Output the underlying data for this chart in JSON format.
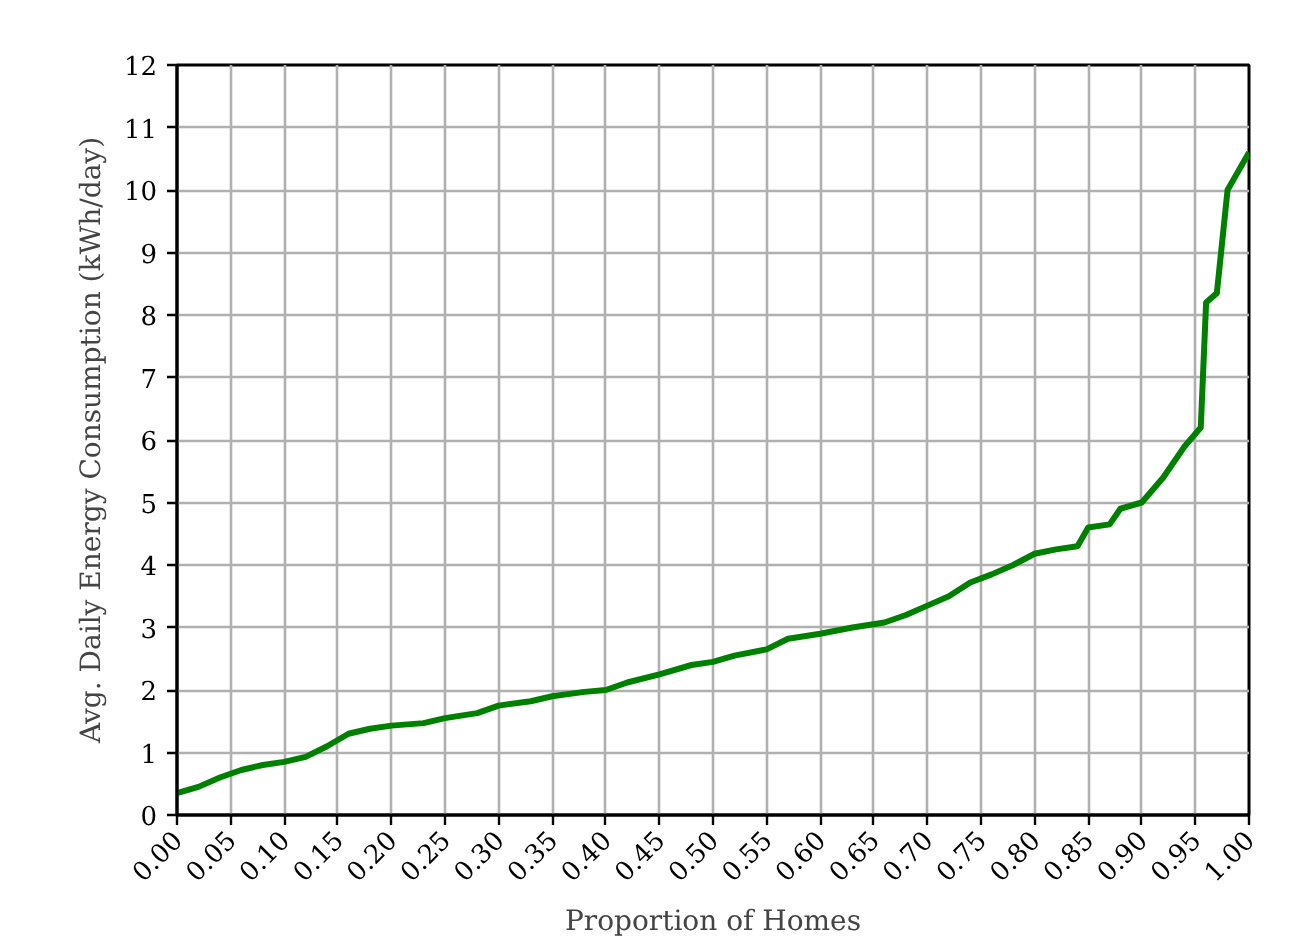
{
  "chart_data": {
    "type": "line",
    "xlabel": "Proportion of Homes",
    "ylabel": "Avg. Daily Energy Consumption (kWh/day)",
    "x": [
      0.0,
      0.02,
      0.04,
      0.06,
      0.08,
      0.1,
      0.12,
      0.14,
      0.16,
      0.18,
      0.2,
      0.23,
      0.25,
      0.28,
      0.3,
      0.33,
      0.35,
      0.38,
      0.4,
      0.42,
      0.45,
      0.48,
      0.5,
      0.52,
      0.55,
      0.57,
      0.6,
      0.63,
      0.66,
      0.68,
      0.7,
      0.72,
      0.74,
      0.76,
      0.78,
      0.8,
      0.82,
      0.84,
      0.85,
      0.87,
      0.88,
      0.9,
      0.92,
      0.94,
      0.955,
      0.96,
      0.97,
      0.98,
      1.0
    ],
    "series": [
      {
        "color": "#008000",
        "values": [
          0.35,
          0.45,
          0.6,
          0.72,
          0.8,
          0.85,
          0.93,
          1.1,
          1.3,
          1.38,
          1.43,
          1.47,
          1.55,
          1.63,
          1.75,
          1.82,
          1.9,
          1.97,
          2.0,
          2.12,
          2.25,
          2.4,
          2.45,
          2.55,
          2.65,
          2.82,
          2.9,
          3.0,
          3.08,
          3.2,
          3.35,
          3.5,
          3.72,
          3.85,
          4.0,
          4.18,
          4.25,
          4.3,
          4.6,
          4.65,
          4.9,
          5.0,
          5.4,
          5.9,
          6.2,
          8.2,
          8.35,
          10.0,
          10.6
        ]
      }
    ],
    "xlim": [
      0,
      1
    ],
    "ylim": [
      0,
      12
    ],
    "xticks": [
      {
        "value": 0,
        "label": "0.00"
      },
      {
        "value": 0.05,
        "label": "0.05"
      },
      {
        "value": 0.1,
        "label": "0.10"
      },
      {
        "value": 0.15,
        "label": "0.15"
      },
      {
        "value": 0.2,
        "label": "0.20"
      },
      {
        "value": 0.25,
        "label": "0.25"
      },
      {
        "value": 0.3,
        "label": "0.30"
      },
      {
        "value": 0.35,
        "label": "0.35"
      },
      {
        "value": 0.4,
        "label": "0.40"
      },
      {
        "value": 0.45,
        "label": "0.45"
      },
      {
        "value": 0.5,
        "label": "0.50"
      },
      {
        "value": 0.55,
        "label": "0.55"
      },
      {
        "value": 0.6,
        "label": "0.60"
      },
      {
        "value": 0.65,
        "label": "0.65"
      },
      {
        "value": 0.7,
        "label": "0.70"
      },
      {
        "value": 0.75,
        "label": "0.75"
      },
      {
        "value": 0.8,
        "label": "0.80"
      },
      {
        "value": 0.85,
        "label": "0.85"
      },
      {
        "value": 0.9,
        "label": "0.90"
      },
      {
        "value": 0.95,
        "label": "0.95"
      },
      {
        "value": 1,
        "label": "1.00"
      }
    ],
    "yticks": [
      0,
      1,
      2,
      3,
      4,
      5,
      6,
      7,
      8,
      9,
      10,
      11,
      12
    ],
    "grid": true,
    "marker": "none",
    "line_style": "solid"
  }
}
